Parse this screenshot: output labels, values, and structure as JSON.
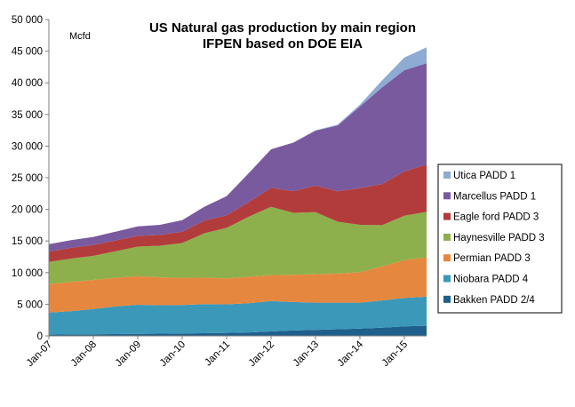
{
  "chart_data": {
    "type": "area",
    "stacked": true,
    "title": "US Natural gas production by main region",
    "subtitle": "IFPEN based on DOE EIA",
    "ylabel": "Mcfd",
    "ylim": [
      0,
      50000
    ],
    "yticks": [
      0,
      5000,
      10000,
      15000,
      20000,
      25000,
      30000,
      35000,
      40000,
      45000,
      50000
    ],
    "ytick_labels": [
      "0",
      "5 000",
      "10 000",
      "15 000",
      "20 000",
      "25 000",
      "30 000",
      "35 000",
      "40 000",
      "45 000",
      "50 000"
    ],
    "x_labels": [
      "Jan-07",
      "Jan-08",
      "Jan-09",
      "Jan-10",
      "Jan-11",
      "Jan-12",
      "Jan-13",
      "Jan-14",
      "Jan-15"
    ],
    "x": [
      2007.0,
      2007.5,
      2008.0,
      2008.5,
      2009.0,
      2009.5,
      2010.0,
      2010.5,
      2011.0,
      2011.5,
      2012.0,
      2012.5,
      2013.0,
      2013.5,
      2014.0,
      2014.5,
      2015.0,
      2015.5
    ],
    "xlim": [
      2007.0,
      2015.5
    ],
    "legend_position": "right",
    "series": [
      {
        "name": "Bakken PADD 2/4",
        "color": "#1F5F8B",
        "values": [
          200,
          220,
          250,
          280,
          320,
          350,
          380,
          420,
          480,
          550,
          700,
          850,
          950,
          1050,
          1150,
          1300,
          1500,
          1600
        ]
      },
      {
        "name": "Niobara PADD 4",
        "color": "#3B98B8",
        "values": [
          3500,
          3700,
          4000,
          4400,
          4600,
          4500,
          4500,
          4600,
          4500,
          4600,
          4800,
          4500,
          4300,
          4200,
          4100,
          4300,
          4500,
          4600
        ]
      },
      {
        "name": "Permian PADD 3",
        "color": "#E6873F",
        "values": [
          4500,
          4600,
          4600,
          4500,
          4500,
          4400,
          4300,
          4200,
          4100,
          4200,
          4100,
          4300,
          4500,
          4600,
          4800,
          5400,
          6000,
          6200
        ]
      },
      {
        "name": "Haynesville PADD 3",
        "color": "#8DB04C",
        "values": [
          3500,
          3700,
          3800,
          4200,
          4700,
          5000,
          5500,
          7000,
          8000,
          9500,
          10800,
          9800,
          9800,
          8200,
          7500,
          6500,
          7000,
          7200
        ]
      },
      {
        "name": "Eagle ford PADD 3",
        "color": "#B23C3C",
        "values": [
          1600,
          1700,
          1700,
          1700,
          1700,
          1700,
          1800,
          2000,
          2000,
          2300,
          3000,
          3400,
          4200,
          4800,
          5800,
          6500,
          7000,
          7500
        ]
      },
      {
        "name": "Marcellus PADD 1",
        "color": "#7A5A9E",
        "values": [
          1200,
          1200,
          1300,
          1400,
          1500,
          1600,
          1800,
          2200,
          3000,
          4600,
          6100,
          7700,
          8700,
          10400,
          12900,
          15300,
          16000,
          16000
        ]
      },
      {
        "name": "Utica PADD 1",
        "color": "#8EABD4",
        "values": [
          0,
          0,
          0,
          0,
          0,
          0,
          0,
          0,
          0,
          0,
          0,
          0,
          50,
          150,
          300,
          1100,
          2000,
          2500
        ]
      }
    ]
  }
}
